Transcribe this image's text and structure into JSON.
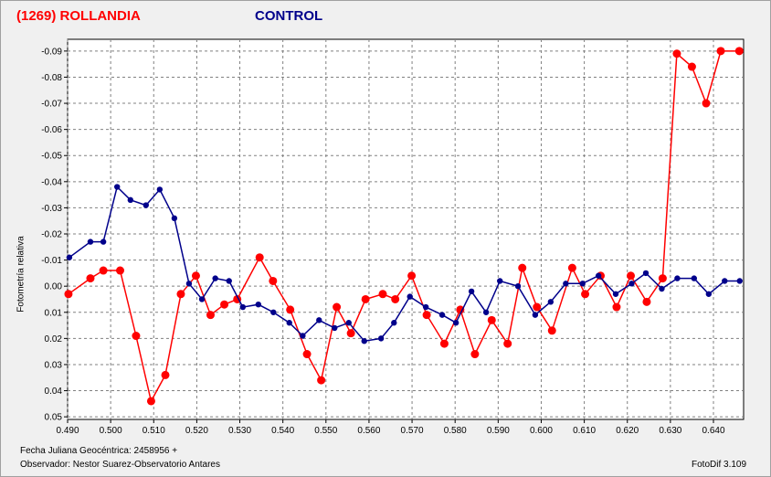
{
  "header": {
    "object_title": "(1269) ROLLANDIA",
    "control_title": "CONTROL"
  },
  "footer": {
    "date_label": "Fecha Juliana Geocéntrica: 2458956 +",
    "observer_label": "Observador: Nestor Suarez-Observatorio Antares",
    "software_label": "FotoDif 3.109"
  },
  "colors": {
    "object": "#ff0000",
    "control": "#00008b",
    "grid": "#808080",
    "plot_bg": "#ffffff"
  },
  "chart_data": {
    "type": "line",
    "title": "(1269) ROLLANDIA",
    "ylabel": "Fotometría relativa",
    "xlabel": "Fecha Juliana Geocéntrica: 2458956 +",
    "xlim": [
      0.49,
      0.647
    ],
    "ylim": [
      0.051,
      -0.0945
    ],
    "y_inverted": true,
    "grid": true,
    "x_ticks": [
      "0.490",
      "0.500",
      "0.510",
      "0.520",
      "0.530",
      "0.540",
      "0.550",
      "0.560",
      "0.570",
      "0.580",
      "0.590",
      "0.600",
      "0.610",
      "0.620",
      "0.630",
      "0.640"
    ],
    "x_tick_values": [
      0.49,
      0.5,
      0.51,
      0.52,
      0.53,
      0.54,
      0.55,
      0.56,
      0.57,
      0.58,
      0.59,
      0.6,
      0.61,
      0.62,
      0.63,
      0.64
    ],
    "y_ticks": [
      "-0.09",
      "-0.08",
      "-0.07",
      "-0.06",
      "-0.05",
      "-0.04",
      "-0.03",
      "-0.02",
      "-0.01",
      "0.00",
      "0.01",
      "0.02",
      "0.03",
      "0.04",
      "0.05"
    ],
    "y_tick_values": [
      -0.09,
      -0.08,
      -0.07,
      -0.06,
      -0.05,
      -0.04,
      -0.03,
      -0.02,
      -0.01,
      0.0,
      0.01,
      0.02,
      0.03,
      0.04,
      0.05
    ],
    "series": [
      {
        "name": "(1269) ROLLANDIA",
        "color": "#ff0000",
        "x": [
          0.4902,
          0.4953,
          0.4983,
          0.5022,
          0.5059,
          0.5094,
          0.5127,
          0.5163,
          0.5198,
          0.5232,
          0.5264,
          0.5294,
          0.5346,
          0.5377,
          0.5417,
          0.5456,
          0.5489,
          0.5525,
          0.5558,
          0.5592,
          0.5632,
          0.5661,
          0.5699,
          0.5734,
          0.5775,
          0.5812,
          0.5846,
          0.5885,
          0.5922,
          0.5956,
          0.599,
          0.6025,
          0.6072,
          0.6102,
          0.6138,
          0.6175,
          0.6208,
          0.6245,
          0.6282,
          0.6315,
          0.635,
          0.6383,
          0.6417,
          0.646
        ],
        "y": [
          0.003,
          -0.003,
          -0.006,
          -0.006,
          0.019,
          0.044,
          0.034,
          0.003,
          -0.004,
          0.011,
          0.007,
          0.005,
          -0.011,
          -0.002,
          0.009,
          0.026,
          0.036,
          0.008,
          0.018,
          0.005,
          0.003,
          0.005,
          -0.004,
          0.011,
          0.022,
          0.009,
          0.026,
          0.013,
          0.022,
          -0.007,
          0.008,
          0.017,
          -0.007,
          0.003,
          -0.004,
          0.008,
          -0.004,
          0.006,
          -0.003,
          -0.089,
          -0.084,
          -0.07,
          -0.09,
          -0.09
        ]
      },
      {
        "name": "CONTROL",
        "color": "#00008b",
        "x": [
          0.4904,
          0.4953,
          0.4983,
          0.5015,
          0.5046,
          0.5082,
          0.5114,
          0.5148,
          0.5182,
          0.5212,
          0.5243,
          0.5275,
          0.5307,
          0.5343,
          0.5378,
          0.5415,
          0.5446,
          0.5484,
          0.552,
          0.5553,
          0.5589,
          0.5628,
          0.5658,
          0.5695,
          0.5732,
          0.577,
          0.5802,
          0.5838,
          0.5872,
          0.5904,
          0.5946,
          0.5986,
          0.6022,
          0.6057,
          0.6096,
          0.6133,
          0.6173,
          0.621,
          0.6243,
          0.628,
          0.6316,
          0.6355,
          0.6389,
          0.6426,
          0.6461
        ],
        "y": [
          -0.011,
          -0.017,
          -0.017,
          -0.038,
          -0.033,
          -0.031,
          -0.037,
          -0.026,
          -0.001,
          0.005,
          -0.003,
          -0.002,
          0.008,
          0.007,
          0.01,
          0.014,
          0.019,
          0.013,
          0.016,
          0.014,
          0.021,
          0.02,
          0.014,
          0.004,
          0.008,
          0.011,
          0.014,
          0.002,
          0.01,
          -0.002,
          0.0,
          0.011,
          0.006,
          -0.001,
          -0.001,
          -0.004,
          0.003,
          -0.001,
          -0.005,
          0.001,
          -0.003,
          -0.003,
          0.003,
          -0.002,
          -0.002
        ]
      }
    ]
  }
}
